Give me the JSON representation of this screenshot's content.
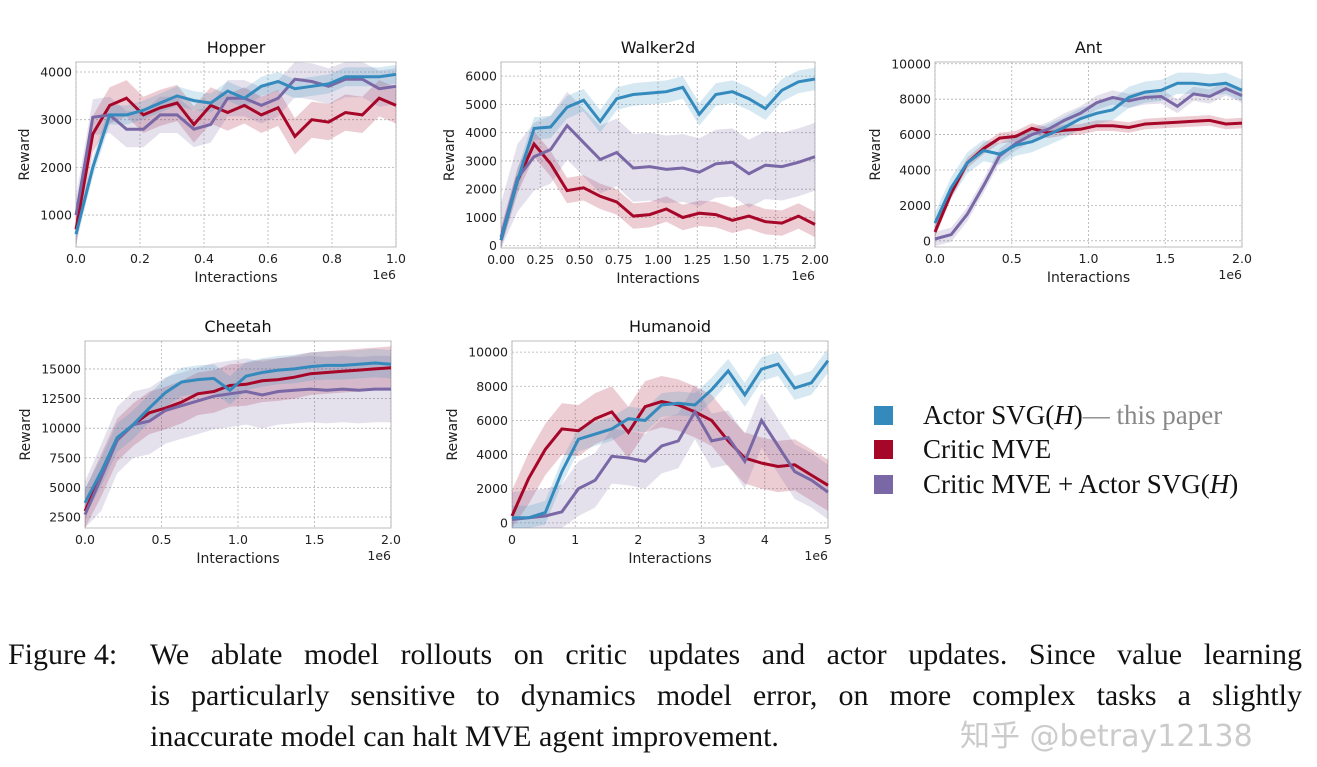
{
  "colors": {
    "actor_svg": "#348abd",
    "critic_mve": "#a60628",
    "both": "#7a68a6",
    "grid": "#b0b0b0"
  },
  "legend": [
    {
      "label": "Actor SVG(",
      "italic": "H",
      "label_end": ")",
      "note": " — this paper",
      "color": "#348abd"
    },
    {
      "label": "Critic MVE",
      "italic": "",
      "label_end": "",
      "note": "",
      "color": "#a60628"
    },
    {
      "label": "Critic MVE + Actor SVG(",
      "italic": "H",
      "label_end": ")",
      "note": "",
      "color": "#7a68a6"
    }
  ],
  "chart_data": [
    {
      "type": "line",
      "title": "Hopper",
      "xlabel": "Interactions",
      "ylabel": "Reward",
      "x_offset_label": "1e6",
      "xlim": [
        0,
        1.0
      ],
      "ylim": [
        330,
        4210
      ],
      "grid": true,
      "xticks": [
        0,
        0.2,
        0.4,
        0.6,
        0.8,
        1.0
      ],
      "xtick_labels": [
        "0.0",
        "0.2",
        "0.4",
        "0.6",
        "0.8",
        "1.0"
      ],
      "yticks": [
        1000,
        2000,
        3000,
        4000
      ],
      "ytick_labels": [
        "1000",
        "2000",
        "3000",
        "4000"
      ],
      "series": [
        {
          "key": "actor_svg",
          "spread": 200,
          "values": [
            600,
            2000,
            3100,
            3100,
            3200,
            3350,
            3500,
            3400,
            3350,
            3600,
            3450,
            3700,
            3800,
            3650,
            3700,
            3750,
            3900,
            3900,
            3900,
            3950
          ]
        },
        {
          "key": "critic_mve",
          "spread": 380,
          "values": [
            700,
            2700,
            3300,
            3450,
            3100,
            3250,
            3350,
            2900,
            3300,
            3150,
            3300,
            3100,
            3250,
            2650,
            3000,
            2950,
            3150,
            3100,
            3450,
            3300
          ]
        },
        {
          "key": "both",
          "spread": 380,
          "values": [
            1000,
            3050,
            3100,
            2800,
            2800,
            3100,
            3100,
            2800,
            2900,
            3450,
            3450,
            3300,
            3450,
            3850,
            3800,
            3700,
            3850,
            3850,
            3650,
            3700
          ]
        }
      ]
    },
    {
      "type": "line",
      "title": "Walker2d",
      "xlabel": "Interactions",
      "ylabel": "Reward",
      "x_offset_label": "1e6",
      "xlim": [
        0,
        2.0
      ],
      "ylim": [
        -80,
        6500
      ],
      "grid": true,
      "xticks": [
        0,
        0.25,
        0.5,
        0.75,
        1.0,
        1.25,
        1.5,
        1.75,
        2.0
      ],
      "xtick_labels": [
        "0.00",
        "0.25",
        "0.50",
        "0.75",
        "1.00",
        "1.25",
        "1.50",
        "1.75",
        "2.00"
      ],
      "yticks": [
        0,
        1000,
        2000,
        3000,
        4000,
        5000,
        6000
      ],
      "ytick_labels": [
        "0",
        "1000",
        "2000",
        "3000",
        "4000",
        "5000",
        "6000"
      ],
      "series": [
        {
          "key": "actor_svg",
          "spread": 400,
          "values": [
            200,
            2300,
            4150,
            4200,
            4900,
            5150,
            4400,
            5200,
            5350,
            5400,
            5450,
            5600,
            4650,
            5350,
            5450,
            5200,
            4850,
            5500,
            5800,
            5900
          ]
        },
        {
          "key": "critic_mve",
          "spread": 450,
          "values": [
            200,
            2300,
            3600,
            2900,
            1950,
            2050,
            1750,
            1550,
            1050,
            1100,
            1300,
            1000,
            1150,
            1100,
            900,
            1050,
            850,
            800,
            1050,
            750
          ]
        },
        {
          "key": "both",
          "spread": 1200,
          "values": [
            300,
            2400,
            3150,
            3400,
            4250,
            3650,
            3050,
            3300,
            2750,
            2800,
            2700,
            2750,
            2600,
            2900,
            2950,
            2550,
            2850,
            2800,
            2950,
            3150
          ]
        }
      ]
    },
    {
      "type": "line",
      "title": "Ant",
      "xlabel": "Interactions",
      "ylabel": "Reward",
      "x_offset_label": "1e6",
      "xlim": [
        0,
        2.0
      ],
      "ylim": [
        -350,
        10100
      ],
      "grid": true,
      "xticks": [
        0,
        0.5,
        1.0,
        1.5,
        2.0
      ],
      "xtick_labels": [
        "0.0",
        "0.5",
        "1.0",
        "1.5",
        "2.0"
      ],
      "yticks": [
        0,
        2000,
        4000,
        6000,
        8000,
        10000
      ],
      "ytick_labels": [
        "0",
        "2000",
        "4000",
        "6000",
        "8000",
        "10000"
      ],
      "series": [
        {
          "key": "actor_svg",
          "spread": 600,
          "values": [
            1000,
            3000,
            4400,
            5100,
            4900,
            5400,
            5600,
            6000,
            6400,
            6900,
            7200,
            7400,
            8100,
            8400,
            8500,
            8900,
            8900,
            8800,
            8900,
            8500
          ]
        },
        {
          "key": "critic_mve",
          "spread": 300,
          "values": [
            500,
            2700,
            4400,
            5200,
            5800,
            5900,
            6350,
            6100,
            6250,
            6300,
            6500,
            6500,
            6400,
            6600,
            6650,
            6700,
            6750,
            6800,
            6600,
            6650
          ]
        },
        {
          "key": "both",
          "spread": 400,
          "values": [
            100,
            350,
            1500,
            3100,
            4800,
            5500,
            6000,
            6300,
            6800,
            7200,
            7800,
            8100,
            7900,
            8100,
            8150,
            7600,
            8300,
            8150,
            8600,
            8200
          ]
        }
      ]
    },
    {
      "type": "line",
      "title": "Cheetah",
      "xlabel": "Interactions",
      "ylabel": "Reward",
      "x_offset_label": "1e6",
      "xlim": [
        0,
        2.0
      ],
      "ylim": [
        1570,
        17360
      ],
      "grid": true,
      "xticks": [
        0,
        0.5,
        1.0,
        1.5,
        2.0
      ],
      "xtick_labels": [
        "0.0",
        "0.5",
        "1.0",
        "1.5",
        "2.0"
      ],
      "yticks": [
        2500,
        5000,
        7500,
        10000,
        12500,
        15000
      ],
      "ytick_labels": [
        "2500",
        "5000",
        "7500",
        "10000",
        "12500",
        "15000"
      ],
      "series": [
        {
          "key": "actor_svg",
          "spread": 1200,
          "values": [
            3700,
            6300,
            9200,
            10300,
            11700,
            13000,
            13900,
            14100,
            14200,
            13200,
            14400,
            14700,
            14900,
            15000,
            15200,
            15300,
            15300,
            15400,
            15500,
            15400
          ]
        },
        {
          "key": "critic_mve",
          "spread": 1800,
          "values": [
            3000,
            6000,
            9000,
            10300,
            11300,
            11700,
            12200,
            12900,
            13100,
            13600,
            13700,
            14000,
            14100,
            14300,
            14600,
            14700,
            14800,
            14900,
            15000,
            15100
          ]
        },
        {
          "key": "both",
          "spread": 2800,
          "values": [
            2700,
            5800,
            9000,
            10300,
            10600,
            11500,
            11900,
            12300,
            12700,
            12900,
            13100,
            12800,
            13100,
            13200,
            13300,
            13200,
            13300,
            13200,
            13300,
            13300
          ]
        }
      ]
    },
    {
      "type": "line",
      "title": "Humanoid",
      "xlabel": "Interactions",
      "ylabel": "Reward",
      "x_offset_label": "1e6",
      "xlim": [
        0,
        5
      ],
      "ylim": [
        -300,
        10650
      ],
      "grid": true,
      "xticks": [
        0,
        1,
        2,
        3,
        4,
        5
      ],
      "xtick_labels": [
        "0",
        "1",
        "2",
        "3",
        "4",
        "5"
      ],
      "yticks": [
        0,
        2000,
        4000,
        6000,
        8000,
        10000
      ],
      "ytick_labels": [
        "0",
        "2000",
        "4000",
        "6000",
        "8000",
        "10000"
      ],
      "series": [
        {
          "key": "actor_svg",
          "spread": 700,
          "values": [
            300,
            300,
            600,
            3000,
            4900,
            5200,
            5500,
            6100,
            6000,
            6900,
            7000,
            6900,
            7800,
            8900,
            7500,
            9000,
            9300,
            7900,
            8200,
            9500
          ]
        },
        {
          "key": "critic_mve",
          "spread": 1500,
          "values": [
            400,
            2600,
            4300,
            5500,
            5400,
            6100,
            6500,
            5300,
            6800,
            7100,
            6900,
            6500,
            6000,
            4800,
            3800,
            3500,
            3300,
            3400,
            2800,
            2200
          ]
        },
        {
          "key": "both",
          "spread": 1600,
          "values": [
            200,
            300,
            400,
            650,
            2000,
            2500,
            3900,
            3800,
            3600,
            4500,
            4800,
            6500,
            4800,
            5000,
            3600,
            6000,
            4500,
            3000,
            2500,
            1800
          ]
        }
      ]
    }
  ],
  "caption": {
    "label": "Figure 4:",
    "lines": [
      "We ablate model rollouts on critic updates and actor updates. Since value learning",
      "is particularly sensitive to dynamics model error, on more complex tasks a slightly",
      "inaccurate model can halt MVE agent improvement."
    ]
  },
  "watermark": "知乎 @betray12138"
}
